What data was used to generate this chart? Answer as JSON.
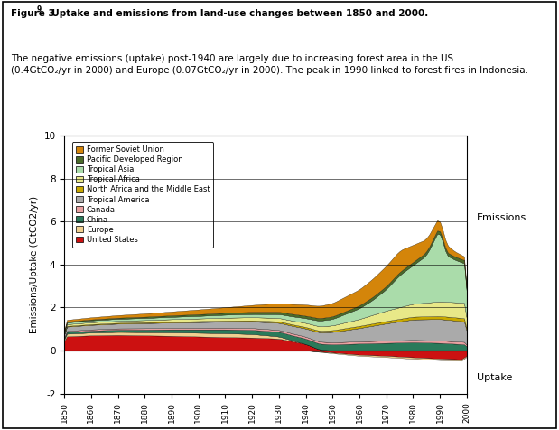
{
  "ylabel": "Emissions/Uptake (GtCO2/yr)",
  "ylim": [
    -2,
    10
  ],
  "xlim": [
    1850,
    2000
  ],
  "emissions_label": "Emissions",
  "uptake_label": "Uptake",
  "legend_entries": [
    {
      "label": "Former Soviet Union",
      "color": "#D4850A"
    },
    {
      "label": "Pacific Developed Region",
      "color": "#4A6B2A"
    },
    {
      "label": "Tropical Asia",
      "color": "#AADCAA"
    },
    {
      "label": "Tropical Africa",
      "color": "#E8E888"
    },
    {
      "label": "North Africa and the Middle East",
      "color": "#C8A800"
    },
    {
      "label": "Tropical America",
      "color": "#AAAAAA"
    },
    {
      "label": "Canada",
      "color": "#E8A0A0"
    },
    {
      "label": "China",
      "color": "#2A7A5A"
    },
    {
      "label": "Europe",
      "color": "#F0D090"
    },
    {
      "label": "United States",
      "color": "#CC1111"
    }
  ],
  "title_fig": "Figure 3",
  "title_sup": "9",
  "title_bold": "  Uptake and emissions from land-use changes between 1850 and 2000.",
  "title_normal": " The negative emissions (uptake) post-1940 are largely due to increasing forest area in the US (0.4GtCO₂/yr in 2000) and Europe (0.07GtCO₂/yr in 2000). The peak in 1990 linked to forest fires in Indonesia."
}
